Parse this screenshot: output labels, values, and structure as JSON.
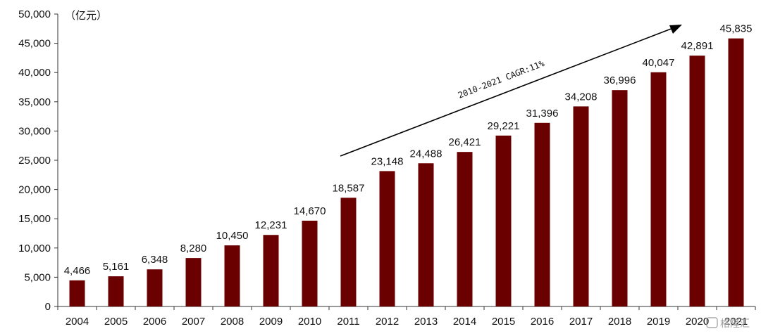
{
  "chart_data": {
    "type": "bar",
    "unit_label": "（亿元）",
    "categories": [
      "2004",
      "2005",
      "2006",
      "2007",
      "2008",
      "2009",
      "2010",
      "2011",
      "2012",
      "2013",
      "2014",
      "2015",
      "2016",
      "2017",
      "2018",
      "2019",
      "2020",
      "2021"
    ],
    "values": [
      4466,
      5161,
      6348,
      8280,
      10450,
      12231,
      14670,
      18587,
      23148,
      24488,
      26421,
      29221,
      31396,
      34208,
      36996,
      40047,
      42891,
      45835
    ],
    "value_labels": [
      "4,466",
      "5,161",
      "6,348",
      "8,280",
      "10,450",
      "12,231",
      "14,670",
      "18,587",
      "23,148",
      "24,488",
      "26,421",
      "29,221",
      "31,396",
      "34,208",
      "36,996",
      "40,047",
      "42,891",
      "45,835"
    ],
    "y_ticks": [
      0,
      5000,
      10000,
      15000,
      20000,
      25000,
      30000,
      35000,
      40000,
      45000,
      50000
    ],
    "y_tick_labels": [
      "0",
      "5,000",
      "10,000",
      "15,000",
      "20,000",
      "25,000",
      "30,000",
      "35,000",
      "40,000",
      "45,000",
      "50,000"
    ],
    "ylim": [
      0,
      50000
    ],
    "bar_color": "#6b0000",
    "grid": false,
    "annotation": "2010-2021 CAGR:11%"
  },
  "watermark": "格隆汇"
}
